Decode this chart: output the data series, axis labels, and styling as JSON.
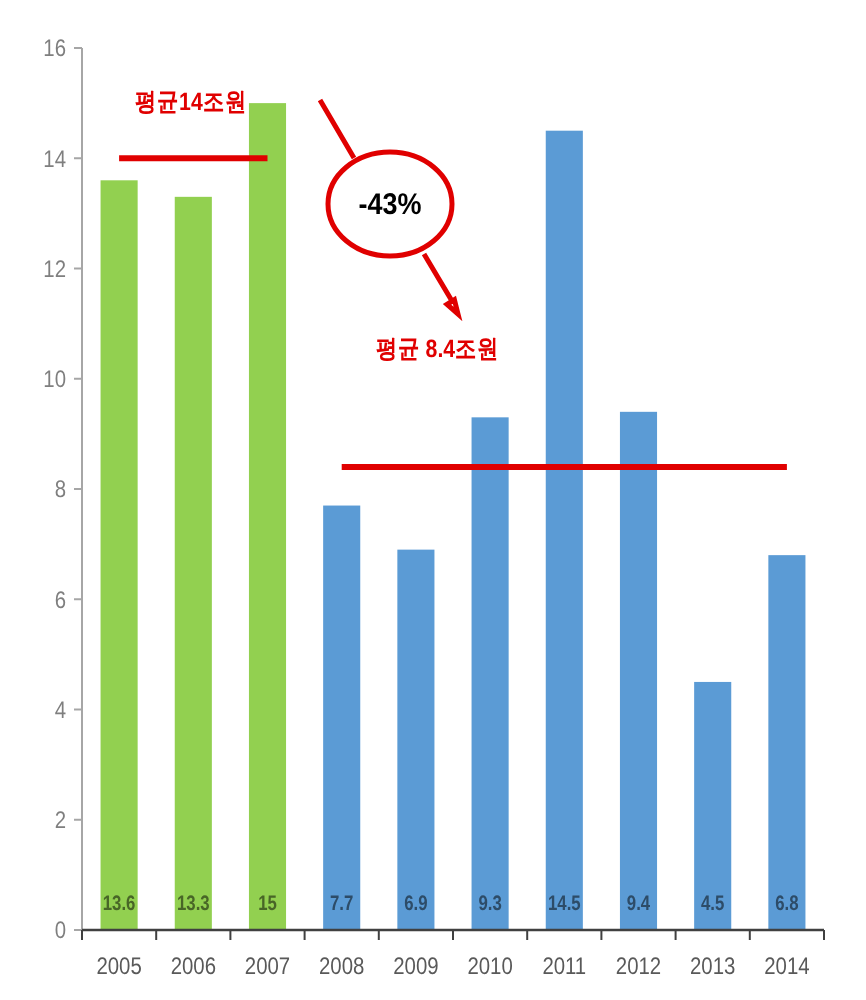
{
  "chart_data": {
    "type": "bar",
    "categories": [
      "2005",
      "2006",
      "2007",
      "2008",
      "2009",
      "2010",
      "2011",
      "2012",
      "2013",
      "2014"
    ],
    "series": [
      {
        "values": [
          13.6,
          13.3,
          15,
          7.7,
          6.9,
          9.3,
          14.5,
          9.4,
          4.5,
          6.8
        ],
        "colors": [
          "#92d050",
          "#92d050",
          "#92d050",
          "#5b9bd5",
          "#5b9bd5",
          "#5b9bd5",
          "#5b9bd5",
          "#5b9bd5",
          "#5b9bd5",
          "#5b9bd5"
        ],
        "value_labels": [
          "13.6",
          "13.3",
          "15",
          "7.7",
          "6.9",
          "9.3",
          "14.5",
          "9.4",
          "4.5",
          "6.8"
        ]
      },
      {
        "type": "line",
        "name": "평균14조원",
        "color": "#e00000",
        "values": [
          14,
          14,
          14,
          null,
          null,
          null,
          null,
          null,
          null,
          null
        ]
      },
      {
        "type": "line",
        "name": "평균 8.4조원",
        "color": "#e00000",
        "values": [
          null,
          null,
          null,
          8.4,
          8.4,
          8.4,
          8.4,
          8.4,
          8.4,
          8.4
        ]
      }
    ],
    "ylim": [
      0,
      16
    ],
    "yticks": [
      0,
      2,
      4,
      6,
      8,
      10,
      12,
      14,
      16
    ],
    "annotations": [
      "-43%"
    ]
  }
}
